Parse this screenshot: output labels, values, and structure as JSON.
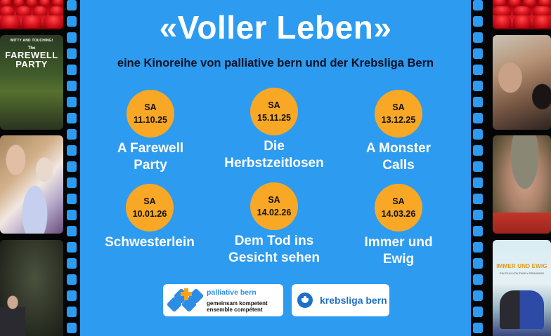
{
  "header": {
    "title": "«Voller Leben»",
    "subtitle": "eine Kinoreihe von palliative bern und der Krebsliga Bern"
  },
  "events": [
    {
      "day": "SA",
      "date": "11.10.25",
      "title_line1": "A Farewell",
      "title_line2": "Party"
    },
    {
      "day": "SA",
      "date": "15.11.25",
      "title_line1": "Die",
      "title_line2": "Herbstzeitlosen"
    },
    {
      "day": "SA",
      "date": "13.12.25",
      "title_line1": "A Monster",
      "title_line2": "Calls"
    },
    {
      "day": "SA",
      "date": "10.01.26",
      "title_line1": "Schwesterlein",
      "title_line2": ""
    },
    {
      "day": "SA",
      "date": "14.02.26",
      "title_line1": "Dem Tod ins",
      "title_line2": "Gesicht sehen"
    },
    {
      "day": "SA",
      "date": "14.03.26",
      "title_line1": "Immer und",
      "title_line2": "Ewig"
    }
  ],
  "logos": {
    "palliative": {
      "name": "palliative bern",
      "tagline1": "gemeinsam kompetent",
      "tagline2": "ensemble compétent"
    },
    "krebsliga": {
      "name": "krebsliga bern"
    }
  },
  "film_strip": {
    "left_posters": {
      "farewell": {
        "tagline": "WITTY AND TOUCHING!",
        "the": "The",
        "title_line1": "FAREWELL",
        "title_line2": "PARTY"
      }
    },
    "right_posters": {
      "immer": {
        "title": "IMMER UND EWIG",
        "subtitle": "EIN FILM VON FANNY BRÄUNING"
      }
    }
  },
  "colors": {
    "background": "#2d9bf0",
    "badge": "#f9a825",
    "title": "#ffffff",
    "subtitle": "#0b1224",
    "film_strip": "#050505",
    "palliative_blue": "#2d8de6",
    "palliative_orange": "#f6a21a",
    "krebsliga_blue": "#1e70c8"
  }
}
